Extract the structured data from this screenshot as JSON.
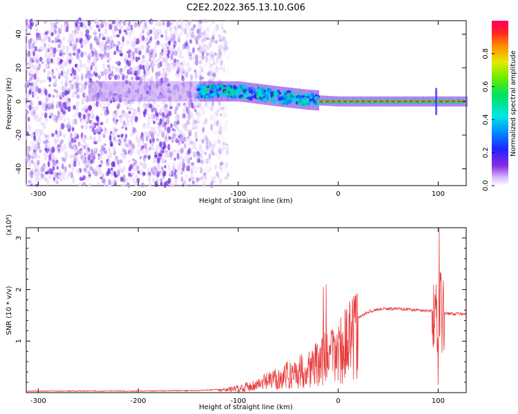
{
  "title": "C2E2.2022.365.13.10.G06",
  "chart_data": [
    {
      "type": "heatmap",
      "xlabel": "Height of straight line (km)",
      "ylabel": "Frequency (Hz)",
      "xlim": [
        -312,
        128
      ],
      "ylim": [
        -50,
        48
      ],
      "xticks": [
        -300,
        -200,
        -100,
        0,
        100
      ],
      "yticks": [
        -40,
        -20,
        0,
        20,
        40
      ],
      "colorbar": {
        "label": "Normalized spectral amplitude",
        "range": [
          0,
          1
        ],
        "ticks": [
          0.0,
          0.2,
          0.4,
          0.6,
          0.8
        ]
      },
      "features": {
        "noise_region_x": [
          -312,
          -120
        ],
        "signal_band_center_hz": [
          {
            "x": -140,
            "y": 6
          },
          {
            "x": -100,
            "y": 6
          },
          {
            "x": -60,
            "y": 3
          },
          {
            "x": -30,
            "y": 1
          },
          {
            "x": 0,
            "y": 0
          },
          {
            "x": 128,
            "y": 0
          }
        ],
        "strong_carrier_x": [
          -20,
          128
        ],
        "spike_x": 98
      }
    },
    {
      "type": "line",
      "xlabel": "Height of straight line (km)",
      "ylabel": "SNR (10 * v/v)",
      "scale_label": "(x10⁴)",
      "xlim": [
        -312,
        128
      ],
      "ylim": [
        0,
        3.2
      ],
      "xticks": [
        -300,
        -200,
        -100,
        0,
        100
      ],
      "yticks": [
        1,
        2,
        3
      ],
      "color": "#e8393a",
      "envelope": [
        {
          "x": -312,
          "y": 0.02
        },
        {
          "x": -200,
          "y": 0.02
        },
        {
          "x": -140,
          "y": 0.03
        },
        {
          "x": -120,
          "y": 0.05
        },
        {
          "x": -100,
          "y": 0.1
        },
        {
          "x": -80,
          "y": 0.2
        },
        {
          "x": -60,
          "y": 0.35
        },
        {
          "x": -40,
          "y": 0.5
        },
        {
          "x": -20,
          "y": 0.7
        },
        {
          "x": -10,
          "y": 0.85
        },
        {
          "x": 0,
          "y": 1.0
        },
        {
          "x": 10,
          "y": 1.2
        },
        {
          "x": 20,
          "y": 1.45
        },
        {
          "x": 30,
          "y": 1.57
        },
        {
          "x": 40,
          "y": 1.62
        },
        {
          "x": 60,
          "y": 1.63
        },
        {
          "x": 80,
          "y": 1.6
        },
        {
          "x": 95,
          "y": 1.58
        },
        {
          "x": 105,
          "y": 1.54
        },
        {
          "x": 128,
          "y": 1.52
        }
      ],
      "peaks": [
        {
          "x": -15,
          "y": 2.05
        },
        {
          "x": -12,
          "y": 2.1
        },
        {
          "x": 98,
          "y": 2.1
        },
        {
          "x": 101,
          "y": 3.2
        },
        {
          "x": 100,
          "y": 0.15
        }
      ]
    }
  ]
}
